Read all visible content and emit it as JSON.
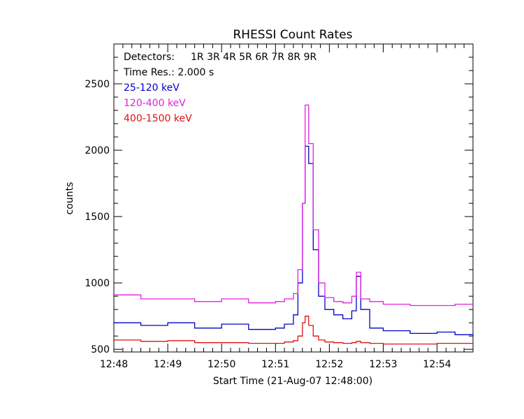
{
  "chart_data": {
    "type": "line",
    "title": "RHESSI Count Rates",
    "xlabel": "Start Time (21-Aug-07 12:48:00)",
    "ylabel": "counts",
    "xlim": [
      "12:48:00",
      "12:54:40"
    ],
    "ylim": [
      480,
      2800
    ],
    "x_tick_labels": [
      "12:48",
      "12:49",
      "12:50",
      "12:51",
      "12:52",
      "12:53",
      "12:54"
    ],
    "y_tick_labels": [
      "500",
      "1000",
      "1500",
      "2000",
      "2500"
    ],
    "grid": false,
    "annotations": {
      "detectors_label": "Detectors:",
      "detectors": "1R 3R 4R 5R 6R 7R 8R 9R",
      "time_res": "Time Res.: 2.000 s"
    },
    "series": [
      {
        "name": "25-120 keV",
        "color": "#0000cc",
        "x": [
          "12:48:00",
          "12:48:30",
          "12:49:00",
          "12:49:30",
          "12:50:00",
          "12:50:30",
          "12:51:00",
          "12:51:10",
          "12:51:20",
          "12:51:25",
          "12:51:30",
          "12:51:33",
          "12:51:37",
          "12:51:42",
          "12:51:48",
          "12:51:55",
          "12:52:05",
          "12:52:15",
          "12:52:25",
          "12:52:30",
          "12:52:35",
          "12:52:45",
          "12:53:00",
          "12:53:30",
          "12:54:00",
          "12:54:20",
          "12:54:40"
        ],
        "values": [
          700,
          680,
          700,
          660,
          690,
          650,
          660,
          690,
          760,
          1000,
          1600,
          2030,
          1900,
          1250,
          900,
          800,
          760,
          730,
          790,
          1050,
          800,
          660,
          640,
          620,
          630,
          610,
          600
        ]
      },
      {
        "name": "120-400 keV",
        "color": "#e020e0",
        "x": [
          "12:48:00",
          "12:48:30",
          "12:49:00",
          "12:49:30",
          "12:50:00",
          "12:50:30",
          "12:51:00",
          "12:51:10",
          "12:51:20",
          "12:51:25",
          "12:51:30",
          "12:51:33",
          "12:51:37",
          "12:51:42",
          "12:51:48",
          "12:51:55",
          "12:52:05",
          "12:52:15",
          "12:52:25",
          "12:52:30",
          "12:52:35",
          "12:52:45",
          "12:53:00",
          "12:53:30",
          "12:54:00",
          "12:54:20",
          "12:54:40"
        ],
        "values": [
          910,
          880,
          880,
          860,
          880,
          850,
          860,
          880,
          920,
          1100,
          1600,
          2340,
          2050,
          1400,
          1000,
          890,
          860,
          850,
          900,
          1080,
          880,
          860,
          840,
          830,
          830,
          840,
          840
        ]
      },
      {
        "name": "400-1500 keV",
        "color": "#dd1111",
        "x": [
          "12:48:00",
          "12:48:30",
          "12:49:00",
          "12:49:30",
          "12:50:00",
          "12:50:30",
          "12:51:00",
          "12:51:10",
          "12:51:20",
          "12:51:25",
          "12:51:30",
          "12:51:33",
          "12:51:37",
          "12:51:42",
          "12:51:48",
          "12:51:55",
          "12:52:05",
          "12:52:15",
          "12:52:25",
          "12:52:30",
          "12:52:35",
          "12:52:45",
          "12:53:00",
          "12:53:30",
          "12:54:00",
          "12:54:20",
          "12:54:40"
        ],
        "values": [
          570,
          560,
          565,
          550,
          550,
          545,
          545,
          555,
          565,
          600,
          700,
          750,
          680,
          600,
          570,
          555,
          550,
          545,
          550,
          560,
          550,
          545,
          540,
          540,
          545,
          545,
          540
        ]
      }
    ]
  }
}
